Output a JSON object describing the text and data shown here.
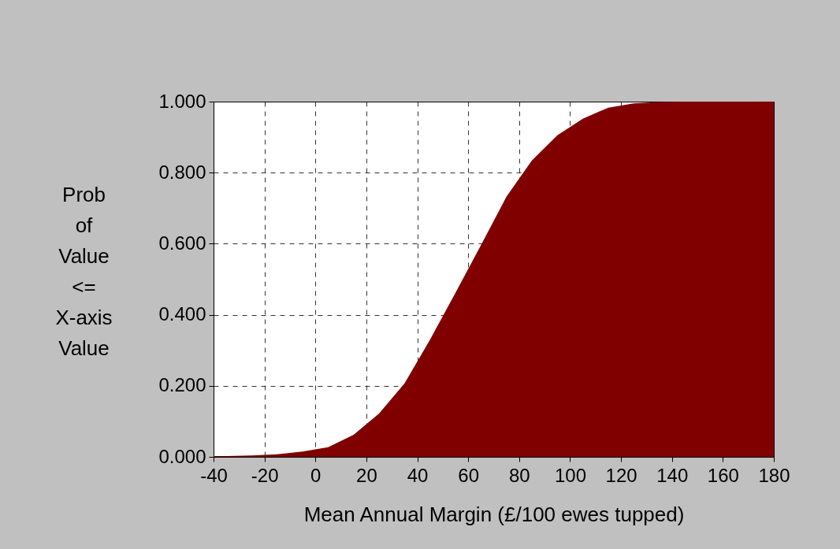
{
  "chart_data": {
    "type": "area",
    "xlabel": "Mean Annual Margin (£/100 ewes tupped)",
    "ylabel": "Prob of Value <= X-axis Value",
    "x": [
      -40,
      -35,
      -25,
      -15,
      -5,
      5,
      15,
      25,
      35,
      45,
      55,
      65,
      75,
      85,
      95,
      105,
      115,
      125,
      135,
      145,
      155,
      165,
      175,
      180
    ],
    "series": [
      {
        "color": "#800000",
        "values": [
          0.002,
          0.002,
          0.004,
          0.007,
          0.015,
          0.027,
          0.062,
          0.122,
          0.207,
          0.33,
          0.462,
          0.596,
          0.732,
          0.834,
          0.905,
          0.952,
          0.983,
          0.995,
          0.999,
          1.0,
          1.0,
          1.0,
          1.0,
          1.0
        ]
      }
    ],
    "xlim": [
      -40,
      180
    ],
    "xticks": [
      -40,
      -20,
      0,
      20,
      40,
      60,
      80,
      100,
      120,
      140,
      160,
      180
    ],
    "ylim": [
      0,
      1
    ],
    "yticks": [
      {
        "value": 0,
        "label": "0.000"
      },
      {
        "value": 0.2,
        "label": "0.200"
      },
      {
        "value": 0.4,
        "label": "0.400"
      },
      {
        "value": 0.6,
        "label": "0.600"
      },
      {
        "value": 0.8,
        "label": "0.800"
      },
      {
        "value": 1,
        "label": "1.000"
      }
    ],
    "grid": true
  }
}
